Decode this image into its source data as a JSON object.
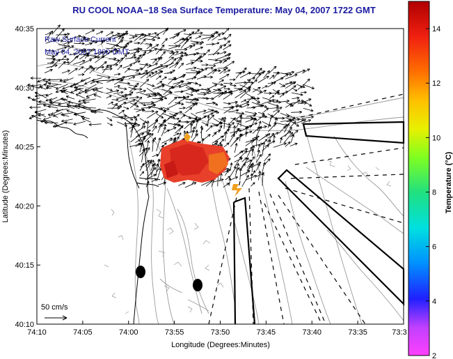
{
  "title": "RU COOL  NOAA−18  Sea Surface Temperature:  May 04, 2007 1722 GMT",
  "annotation": {
    "line1": "Raw Surface Current",
    "line2": "May 04, 2007 1800 GMT"
  },
  "x_axis": {
    "label": "Longitude (Degrees:Minutes)",
    "ticks": [
      "74:10",
      "74:05",
      "74:00",
      "73:55",
      "73:50",
      "73:45",
      "73:40",
      "73:35",
      "73:3"
    ]
  },
  "y_axis": {
    "label": "Latitude (Degrees:Minutes)",
    "ticks": [
      "40:10",
      "40:15",
      "40:20",
      "40:25",
      "40:30",
      "40:35"
    ]
  },
  "colorbar": {
    "label": "Temperature (°C)",
    "ticks": [
      "2",
      "4",
      "6",
      "8",
      "10",
      "12",
      "14"
    ],
    "range": [
      2,
      15
    ],
    "colors": {
      "low": "#ff40ff",
      "blue": "#0000ff",
      "cyan": "#00ffff",
      "green": "#40ff40",
      "yellow": "#ffff00",
      "orange": "#ff8000",
      "high": "#c00000"
    }
  },
  "scale_vector": {
    "label": "50 cm/s"
  },
  "colors": {
    "title": "#1a1aa0",
    "contours": "#9a9a9a",
    "land_outline": "#000000",
    "sst_patch": "#e8402a"
  }
}
